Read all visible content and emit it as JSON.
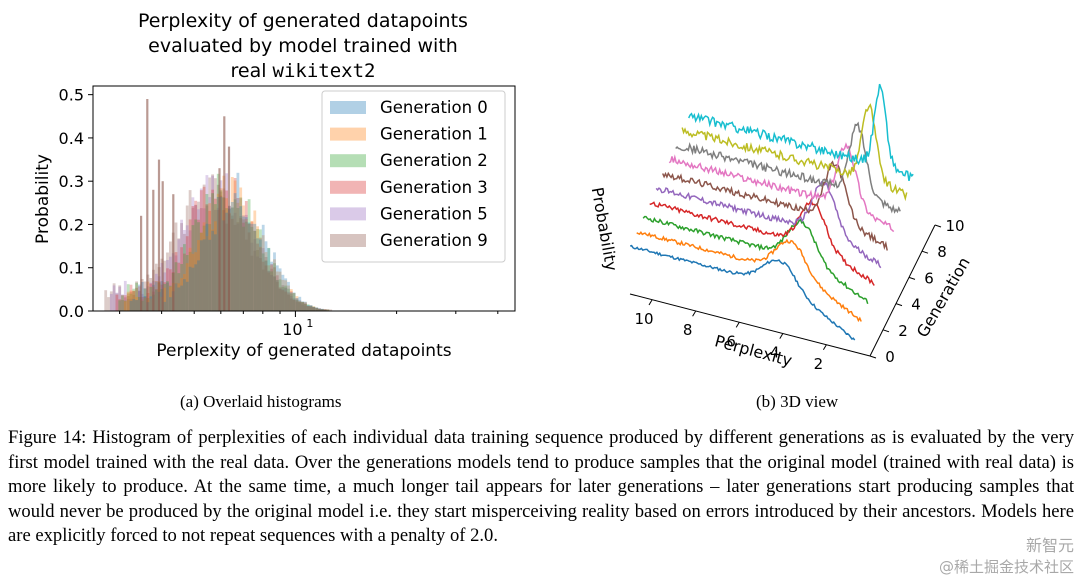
{
  "panel_a": {
    "title_lines": [
      "Perplexity of generated datapoints",
      "evaluated by model trained with",
      "real "
    ],
    "title_mono": "wikitext2",
    "xlabel": "Perplexity of generated datapoints",
    "ylabel": "Probability",
    "ytick_labels": [
      "0.0",
      "0.1",
      "0.2",
      "0.3",
      "0.4",
      "0.5"
    ],
    "xtick_label_base": "10",
    "xtick_label_exp": "1",
    "caption": "(a) Overlaid histograms"
  },
  "panel_b": {
    "zlabel": "Probability",
    "xlabel": "Perplexity",
    "ylabel": "Generation",
    "x_tick_labels": [
      "10",
      "8",
      "6",
      "4",
      "2"
    ],
    "y_tick_labels": [
      "0",
      "2",
      "4",
      "6",
      "8",
      "10"
    ],
    "caption": "(b) 3D view"
  },
  "figure_caption": "Figure 14: Histogram of perplexities of each individual data training sequence produced by different generations as is evaluated by the very first model trained with the real data. Over the generations models tend to produce samples that the original model (trained with real data) is more likely to produce. At the same time, a much longer tail appears for later generations – later generations start producing samples that would never be produced by the original model i.e. they start misperceiving reality based on errors introduced by their ancestors. Models here are explicitly forced to not repeat sequences with a penalty of 2.0.",
  "watermark": {
    "line1": "新智元",
    "line2": "@稀土掘金技术社区"
  },
  "chart_data": [
    {
      "type": "bar",
      "subtype": "overlaid_histogram",
      "title": "Perplexity of generated datapoints evaluated by model trained with real wikitext2",
      "xlabel": "Perplexity of generated datapoints",
      "ylabel": "Probability",
      "xscale": "log",
      "xlim": [
        2.5,
        45
      ],
      "ylim": [
        0,
        0.52
      ],
      "grid": false,
      "legend": "top-right",
      "series": [
        {
          "name": "Generation 0",
          "color": "#1f77b4",
          "peak_x": 6.6,
          "peak_y": 0.27,
          "spread": 0.19,
          "min_x": 3.2
        },
        {
          "name": "Generation 1",
          "color": "#ff7f0e",
          "peak_x": 6.4,
          "peak_y": 0.27,
          "spread": 0.2,
          "min_x": 3.1
        },
        {
          "name": "Generation 2",
          "color": "#2ca02c",
          "peak_x": 6.2,
          "peak_y": 0.28,
          "spread": 0.21,
          "min_x": 3.0
        },
        {
          "name": "Generation 3",
          "color": "#d62728",
          "peak_x": 6.0,
          "peak_y": 0.28,
          "spread": 0.22,
          "min_x": 2.9
        },
        {
          "name": "Generation 5",
          "color": "#9467bd",
          "peak_x": 5.8,
          "peak_y": 0.28,
          "spread": 0.23,
          "min_x": 2.8
        },
        {
          "name": "Generation 9",
          "color": "#8c564b",
          "peak_x": 5.6,
          "peak_y": 0.27,
          "spread": 0.25,
          "min_x": 2.7
        }
      ],
      "spikes": [
        [
          3.6,
          0.49
        ],
        [
          3.9,
          0.35
        ],
        [
          3.75,
          0.28
        ],
        [
          4.0,
          0.3
        ],
        [
          3.45,
          0.22
        ],
        [
          4.3,
          0.27
        ],
        [
          6.1,
          0.45
        ],
        [
          6.3,
          0.38
        ],
        [
          5.9,
          0.33
        ]
      ]
    },
    {
      "type": "line",
      "subtype": "3d_waterfall",
      "xlabel": "Perplexity",
      "ylabel": "Generation",
      "zlabel": "Probability",
      "xlim": [
        0,
        11
      ],
      "ylim": [
        0,
        10
      ],
      "series_colors": [
        "#17becf",
        "#bcbd22",
        "#7f7f7f",
        "#e377c2",
        "#8c564b",
        "#9467bd",
        "#d62728",
        "#2ca02c",
        "#ff7f0e",
        "#1f77b4"
      ]
    }
  ]
}
